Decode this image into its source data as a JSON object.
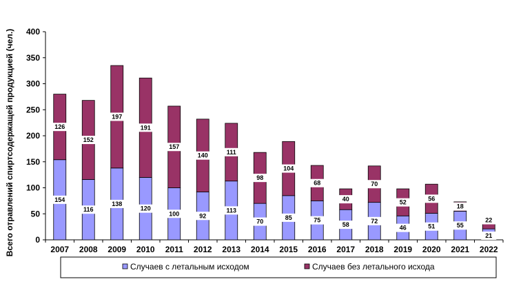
{
  "chart_data": {
    "type": "bar",
    "stacked": true,
    "categories": [
      "2007",
      "2008",
      "2009",
      "2010",
      "2011",
      "2012",
      "2013",
      "2014",
      "2015",
      "2016",
      "2017",
      "2018",
      "2019",
      "2020",
      "2021",
      "2022"
    ],
    "series": [
      {
        "name": "Случаев  с летальным исходом",
        "color": "#9999ff",
        "values": [
          154,
          116,
          138,
          120,
          100,
          92,
          113,
          70,
          85,
          75,
          58,
          72,
          46,
          51,
          55,
          21
        ]
      },
      {
        "name": "Случаев  без летального исхода",
        "color": "#993366",
        "values": [
          126,
          152,
          197,
          191,
          157,
          140,
          111,
          98,
          104,
          68,
          40,
          70,
          52,
          56,
          18,
          22
        ]
      }
    ],
    "ylabel": "Всего отравлений спиртсодержащей  продукцией  (чел.)",
    "xlabel": "",
    "ylim": [
      0,
      400
    ],
    "yticks": [
      0,
      50,
      100,
      150,
      200,
      250,
      300,
      350,
      400
    ],
    "grid": false,
    "legend": "bottom"
  }
}
